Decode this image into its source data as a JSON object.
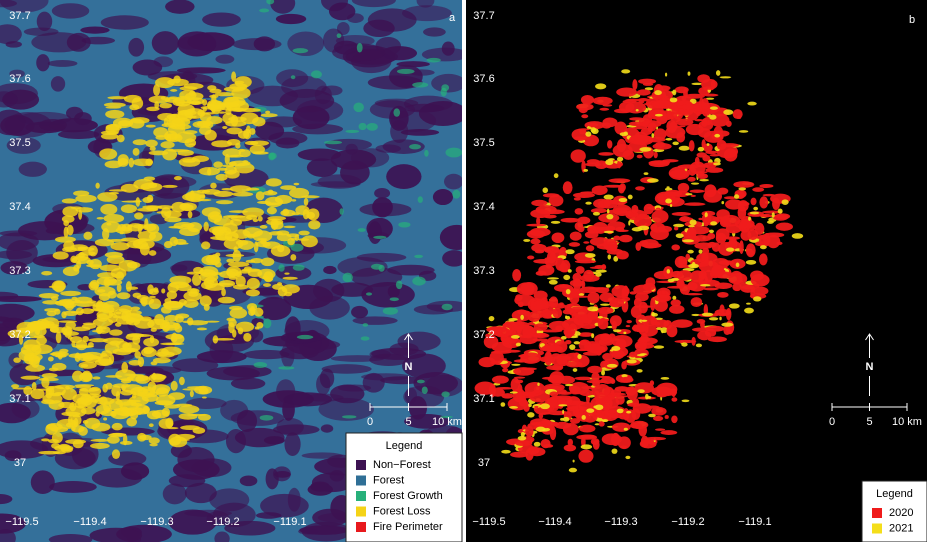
{
  "panels": [
    {
      "label": "a",
      "lat_ticks": [
        "37.7",
        "37.6",
        "37.5",
        "37.4",
        "37.3",
        "37.2",
        "37.1",
        "37"
      ],
      "lon_ticks": [
        "−119.5",
        "−119.4",
        "−119.3",
        "−119.2",
        "−119.1"
      ],
      "north": "N",
      "scale": [
        "0",
        "5",
        "10 km"
      ],
      "legend": {
        "title": "Legend",
        "items": [
          {
            "label": "Non−Forest",
            "color": "#3d1252"
          },
          {
            "label": "Forest",
            "color": "#2f6f96"
          },
          {
            "label": "Forest Growth",
            "color": "#27b07a"
          },
          {
            "label": "Forest Loss",
            "color": "#f5d317"
          },
          {
            "label": "Fire Perimeter",
            "color": "#e8191d"
          }
        ]
      }
    },
    {
      "label": "b",
      "lat_ticks": [
        "37.7",
        "37.6",
        "37.5",
        "37.4",
        "37.3",
        "37.2",
        "37.1",
        "37"
      ],
      "lon_ticks": [
        "−119.5",
        "−119.4",
        "−119.3",
        "−119.2",
        "−119.1"
      ],
      "north": "N",
      "scale": [
        "0",
        "5",
        "10 km"
      ],
      "legend": {
        "title": "Legend",
        "items": [
          {
            "label": "2020",
            "color": "#ef1b1b"
          },
          {
            "label": "2021",
            "color": "#f4de1a"
          }
        ]
      }
    }
  ]
}
